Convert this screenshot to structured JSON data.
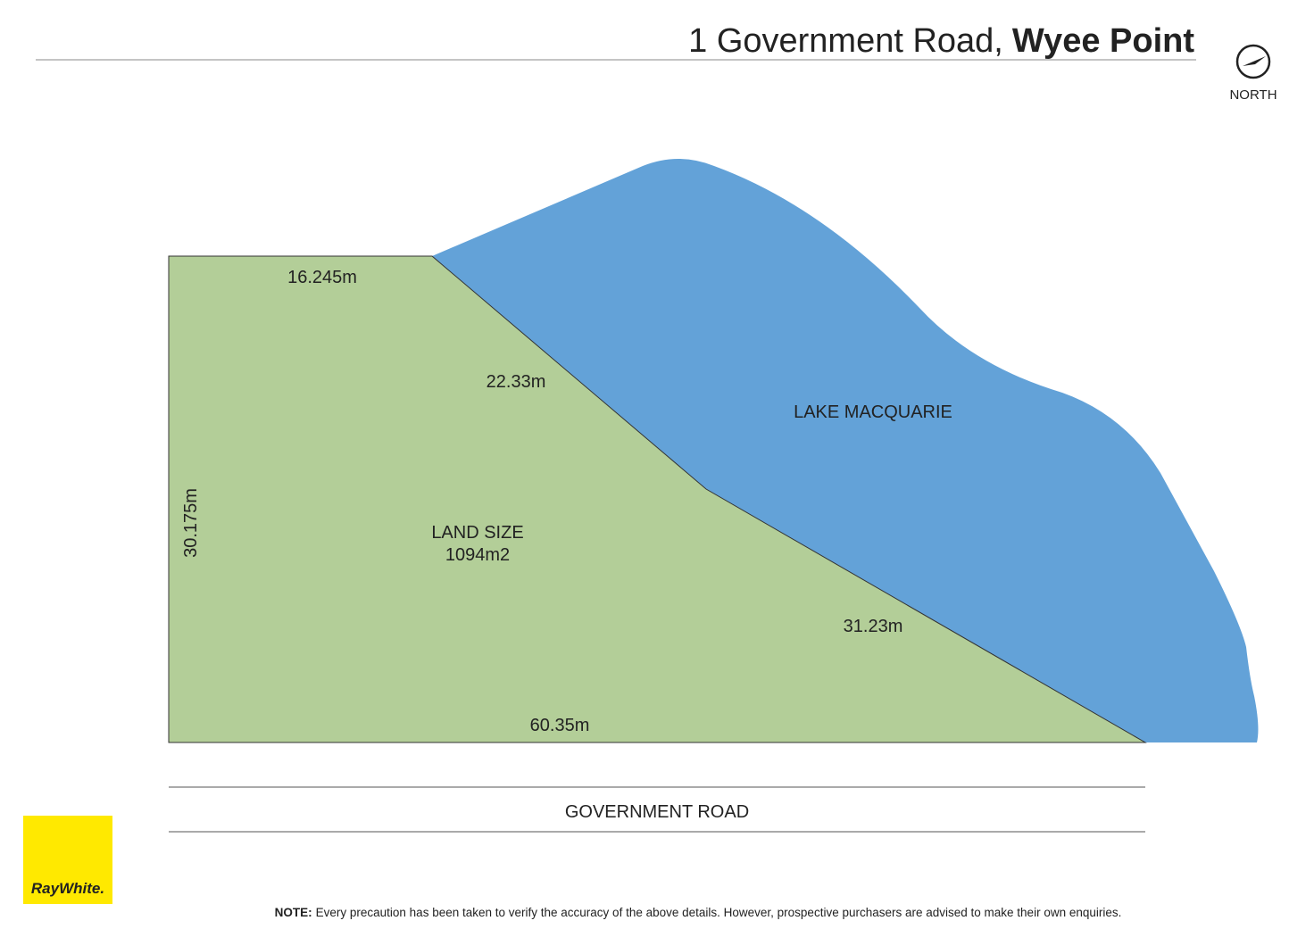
{
  "header": {
    "address": "1 Government Road,",
    "suburb": "Wyee Point"
  },
  "compass": {
    "label": "NORTH"
  },
  "plot": {
    "dimensions": {
      "top": "16.245m",
      "upper_diagonal": "22.33m",
      "left": "30.175m",
      "lower_diagonal": "31.23m",
      "bottom": "60.35m"
    },
    "land_size": {
      "label": "LAND SIZE",
      "value": "1094m2"
    },
    "water": "LAKE MACQUARIE",
    "road": "GOVERNMENT ROAD"
  },
  "logo": "RayWhite.",
  "note": {
    "label": "NOTE:",
    "text": "Every precaution has been taken to verify the accuracy of the above details. However, prospective purchasers are advised to make their own enquiries."
  }
}
